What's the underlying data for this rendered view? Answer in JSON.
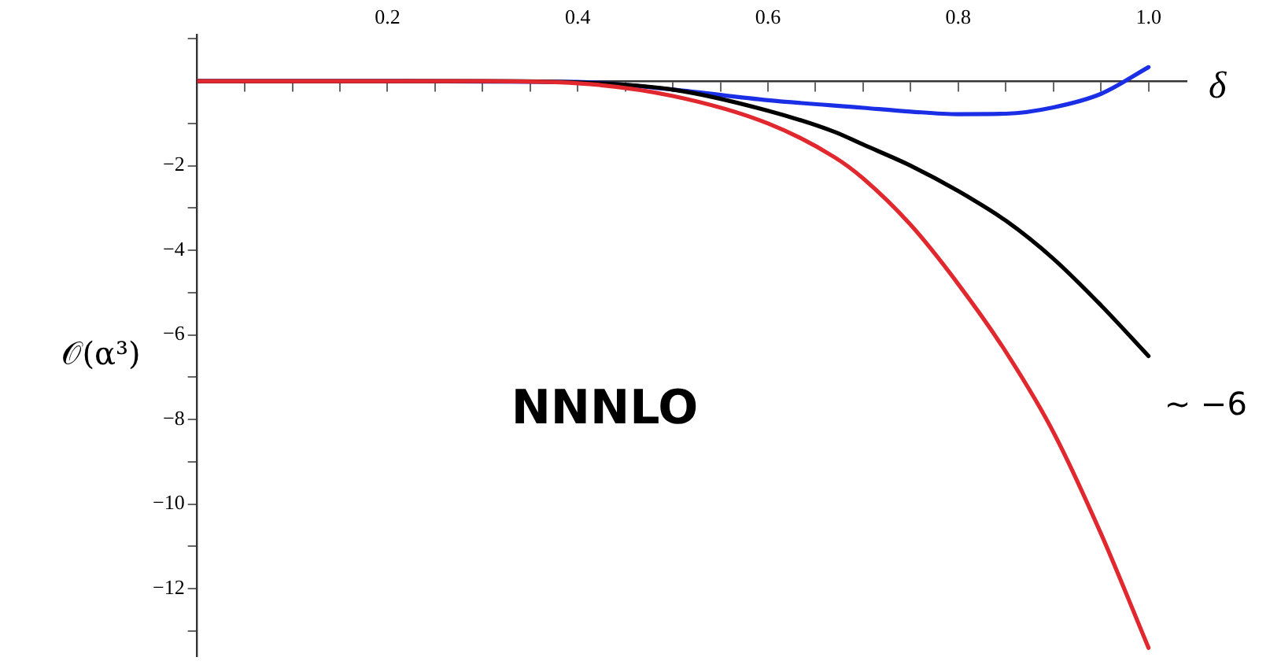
{
  "chart_data": {
    "type": "line",
    "xlabel": "δ",
    "ylabel": "𝒪(α³)",
    "annotations": [
      "NNNLO",
      {
        "text": "∼ −6",
        "x": 1.0,
        "y": -6.5
      }
    ],
    "x": [
      0,
      0.1,
      0.2,
      0.3,
      0.4,
      0.5,
      0.6,
      0.67,
      0.7,
      0.75,
      0.8,
      0.85,
      0.9,
      0.95,
      1.0
    ],
    "series": [
      {
        "color": "#e0282e",
        "values": [
          0,
          0,
          0,
          0,
          -0.05,
          -0.35,
          -1.0,
          -1.8,
          -2.3,
          -3.4,
          -4.8,
          -6.4,
          -8.3,
          -10.7,
          -13.4
        ]
      },
      {
        "color": "#000000",
        "values": [
          0,
          0,
          0,
          0,
          -0.03,
          -0.2,
          -0.7,
          -1.2,
          -1.5,
          -2.0,
          -2.6,
          -3.3,
          -4.2,
          -5.3,
          -6.5
        ]
      },
      {
        "color": "#1a2ee6",
        "x": [
          0,
          0.2,
          0.4,
          0.5,
          0.6,
          0.7,
          0.75,
          0.8,
          0.85,
          0.9,
          0.95,
          1.0
        ],
        "values": [
          0,
          0,
          -0.02,
          -0.2,
          -0.45,
          -0.63,
          -0.72,
          -0.78,
          -0.77,
          -0.62,
          -0.3,
          0.33
        ]
      }
    ],
    "xlim": [
      0,
      1.04
    ],
    "ylim": [
      -13.6,
      1.1
    ],
    "xticks": [
      {
        "value": 0.05,
        "label": null
      },
      {
        "value": 0.1,
        "label": null
      },
      {
        "value": 0.15,
        "label": null
      },
      0.2,
      {
        "value": 0.25,
        "label": null
      },
      {
        "value": 0.3,
        "label": null
      },
      {
        "value": 0.35,
        "label": null
      },
      0.4,
      {
        "value": 0.45,
        "label": null
      },
      {
        "value": 0.5,
        "label": null
      },
      {
        "value": 0.55,
        "label": null
      },
      0.6,
      {
        "value": 0.65,
        "label": null
      },
      {
        "value": 0.7,
        "label": null
      },
      {
        "value": 0.75,
        "label": null
      },
      0.8,
      {
        "value": 0.85,
        "label": null
      },
      {
        "value": 0.9,
        "label": null
      },
      {
        "value": 0.95,
        "label": null
      },
      {
        "value": 1.0,
        "label": "1.0"
      }
    ],
    "yticks": [
      {
        "value": -13,
        "label": null
      },
      {
        "value": -12,
        "label": "−12"
      },
      {
        "value": -11,
        "label": null
      },
      {
        "value": -10,
        "label": "−10"
      },
      {
        "value": -9,
        "label": null
      },
      {
        "value": -8,
        "label": "−8"
      },
      {
        "value": -7,
        "label": null
      },
      {
        "value": -6,
        "label": "−6"
      },
      {
        "value": -5,
        "label": null
      },
      {
        "value": -4,
        "label": "−4"
      },
      {
        "value": -3,
        "label": null
      },
      {
        "value": -2,
        "label": "−2"
      },
      {
        "value": -1,
        "label": null
      },
      {
        "value": 1,
        "label": null
      }
    ],
    "grid": false,
    "legend": false,
    "marker": "none",
    "line_style": "solid"
  }
}
